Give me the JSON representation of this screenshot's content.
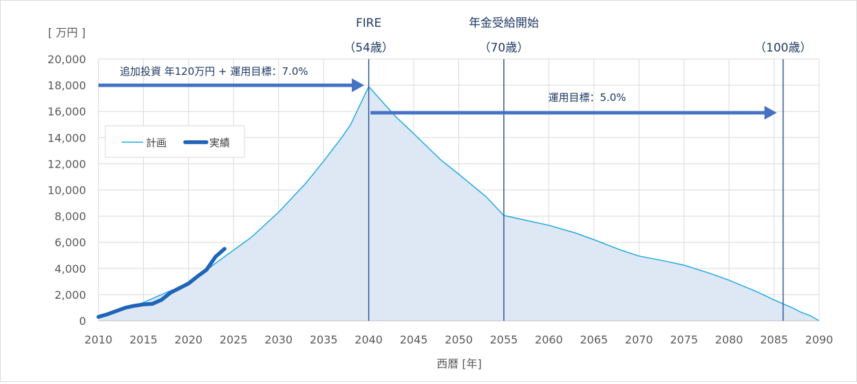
{
  "chart_data": {
    "type": "area",
    "title": "",
    "ylabel": "[ 万円 ]",
    "xlabel": "西暦 [年]",
    "xlim": [
      2010,
      2090
    ],
    "ylim": [
      0,
      20000
    ],
    "x_ticks": [
      2010,
      2015,
      2020,
      2025,
      2030,
      2035,
      2040,
      2045,
      2050,
      2055,
      2060,
      2065,
      2070,
      2075,
      2080,
      2085,
      2090
    ],
    "y_ticks": [
      0,
      2000,
      4000,
      6000,
      8000,
      10000,
      12000,
      14000,
      16000,
      18000,
      20000
    ],
    "y_tick_labels": [
      "0",
      "2,000",
      "4,000",
      "6,000",
      "8,000",
      "10,000",
      "12,000",
      "14,000",
      "16,000",
      "18,000",
      "20,000"
    ],
    "grid": true,
    "legend_position": "left",
    "series": [
      {
        "name": "計画",
        "color": "#21a9e1",
        "fill": "#dde8f4",
        "x": [
          2010,
          2012,
          2015,
          2018,
          2020,
          2023,
          2025,
          2027,
          2030,
          2033,
          2035,
          2037,
          2038,
          2040,
          2043,
          2045,
          2048,
          2050,
          2053,
          2055,
          2058,
          2060,
          2063,
          2065,
          2068,
          2070,
          2073,
          2075,
          2078,
          2080,
          2083,
          2085,
          2087,
          2088,
          2089,
          2090
        ],
        "values": [
          300,
          700,
          1400,
          2300,
          2800,
          4400,
          5400,
          6400,
          8300,
          10500,
          12200,
          14000,
          15000,
          17900,
          15600,
          14300,
          12300,
          11200,
          9500,
          8050,
          7600,
          7300,
          6700,
          6200,
          5400,
          4950,
          4550,
          4250,
          3600,
          3100,
          2250,
          1600,
          1000,
          650,
          400,
          0
        ]
      },
      {
        "name": "実績",
        "color": "#1f64b8",
        "x": [
          2010,
          2011,
          2012,
          2013,
          2014,
          2015,
          2016,
          2017,
          2018,
          2019,
          2020,
          2021,
          2022,
          2023,
          2024
        ],
        "values": [
          300,
          500,
          750,
          1000,
          1150,
          1250,
          1300,
          1600,
          2150,
          2500,
          2850,
          3400,
          3900,
          4900,
          5500
        ]
      }
    ],
    "milestones": [
      {
        "x": 2040,
        "label_top": "FIRE",
        "label_age": "（54歳）"
      },
      {
        "x": 2055,
        "label_top": "年金受給開始",
        "label_age": "（70歳）"
      },
      {
        "x": 2086,
        "label_top": "",
        "label_age": "（100歳）"
      }
    ],
    "arrows": [
      {
        "label": "追加投資 年120万円 + 運用目標：7.0%",
        "x_start": 2010,
        "x_end": 2039.5,
        "y": 18000
      },
      {
        "label": "運用目標：5.0%",
        "x_start": 2040.2,
        "x_end": 2085.3,
        "y": 15900
      }
    ]
  }
}
